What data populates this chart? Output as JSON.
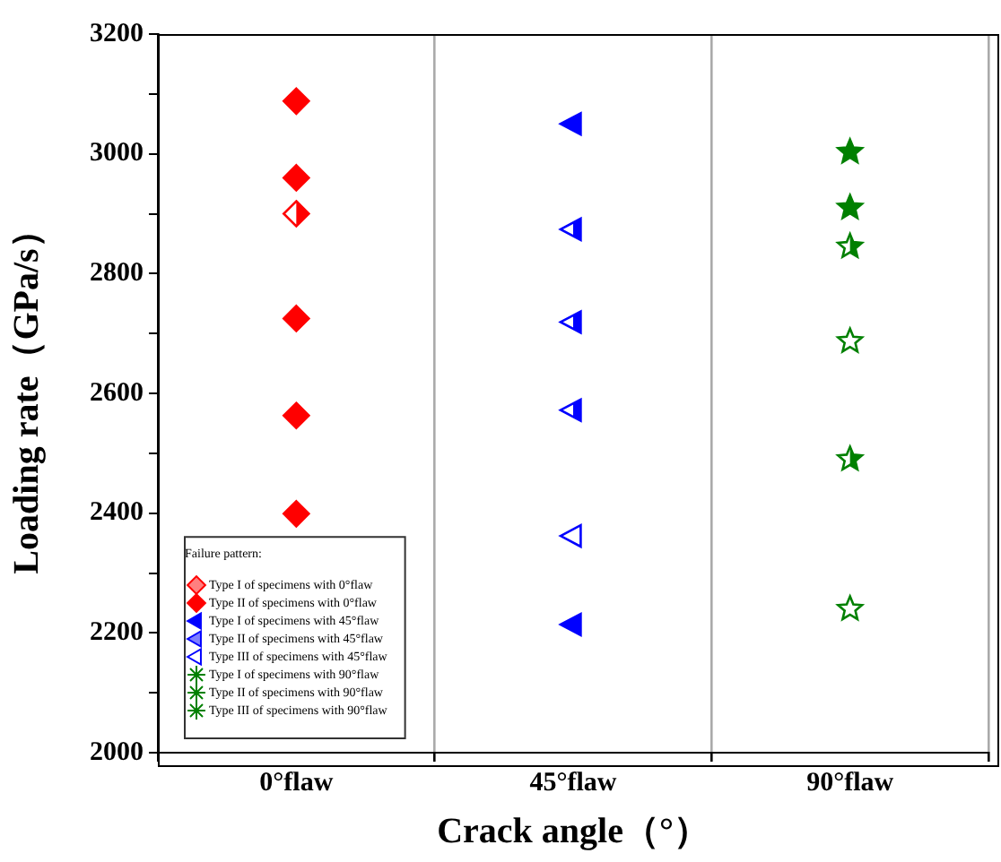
{
  "chart_data": {
    "type": "scatter",
    "xlabel": "Crack angle（°）",
    "ylabel": "Loading rate（GPa/s）",
    "legend_title": "Failure pattern:",
    "categories": [
      "0°flaw",
      "45°flaw",
      "90°flaw"
    ],
    "ylim": [
      2000,
      3200
    ],
    "yticks": [
      2000,
      {
        "value": 2100,
        "label": null
      },
      2200,
      {
        "value": 2300,
        "label": null
      },
      2400,
      {
        "value": 2500,
        "label": null
      },
      2600,
      {
        "value": 2700,
        "label": null
      },
      2800,
      {
        "value": 2900,
        "label": null
      },
      3000,
      {
        "value": 3100,
        "label": null
      },
      3200
    ],
    "grid": "x",
    "legend": "bottom left",
    "series": [
      {
        "name": "Type I of specimens with 0°flaw",
        "color": "#ff0000",
        "marker": "diamond",
        "x": [
          "0°flaw"
        ],
        "values": [
          2900
        ]
      },
      {
        "name": "Type II of specimens with 0°flaw",
        "color": "#ff0000",
        "marker": "diamond",
        "x": [
          "0°flaw",
          "0°flaw",
          "0°flaw",
          "0°flaw",
          "0°flaw"
        ],
        "values": [
          3088,
          2960,
          2725,
          2563,
          2399
        ]
      },
      {
        "name": "Type I of specimens with 45°flaw",
        "color": "#0000ff",
        "marker": "triangle",
        "x": [
          "45°flaw",
          "45°flaw"
        ],
        "values": [
          3050,
          2214
        ]
      },
      {
        "name": "Type II of specimens with 45°flaw",
        "color": "#0000ff",
        "marker": "triangle",
        "x": [
          "45°flaw",
          "45°flaw",
          "45°flaw"
        ],
        "values": [
          2874,
          2719,
          2572
        ]
      },
      {
        "name": "Type III of specimens with 45°flaw",
        "color": "#0000ff",
        "marker": "triangle",
        "x": [
          "45°flaw"
        ],
        "values": [
          2362
        ]
      },
      {
        "name": "Type I of specimens with 90°flaw",
        "color": "#008000",
        "marker": "star",
        "x": [
          "90°flaw",
          "90°flaw"
        ],
        "values": [
          3003,
          2910
        ]
      },
      {
        "name": "Type II of specimens with 90°flaw",
        "color": "#008000",
        "marker": "star",
        "x": [
          "90°flaw",
          "90°flaw"
        ],
        "values": [
          2845,
          2490
        ]
      },
      {
        "name": "Type III of specimens with 90°flaw",
        "color": "#008000",
        "marker": "star",
        "x": [
          "90°flaw",
          "90°flaw"
        ],
        "values": [
          2687,
          2240
        ]
      }
    ]
  }
}
